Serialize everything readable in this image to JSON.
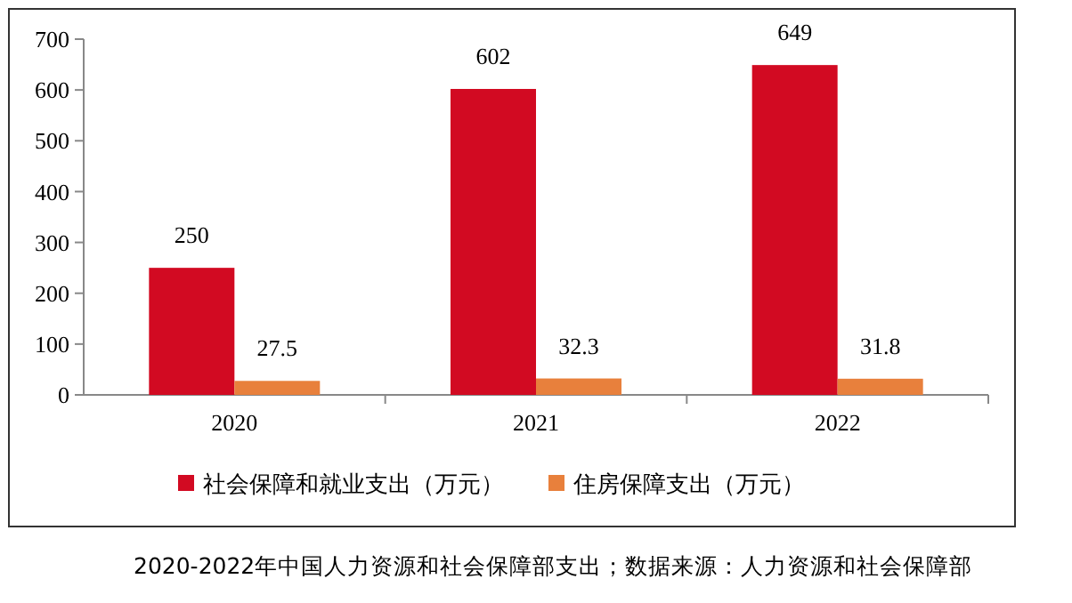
{
  "chart_data": {
    "type": "bar",
    "categories": [
      "2020",
      "2021",
      "2022"
    ],
    "series": [
      {
        "name": "社会保障和就业支出（万元）",
        "color": "#d20a22",
        "values": [
          250,
          602,
          649
        ]
      },
      {
        "name": "住房保障支出（万元）",
        "color": "#e8803c",
        "values": [
          27.5,
          32.3,
          31.8
        ]
      }
    ],
    "ylim": [
      0,
      700
    ],
    "yticks": [
      0,
      100,
      200,
      300,
      400,
      500,
      600,
      700
    ],
    "grid": false,
    "legend": "bottom",
    "data_labels": true,
    "annotations": [
      "2020-2022年中国人力资源和社会保障部支出；数据来源：人力资源和社会保障部"
    ]
  }
}
